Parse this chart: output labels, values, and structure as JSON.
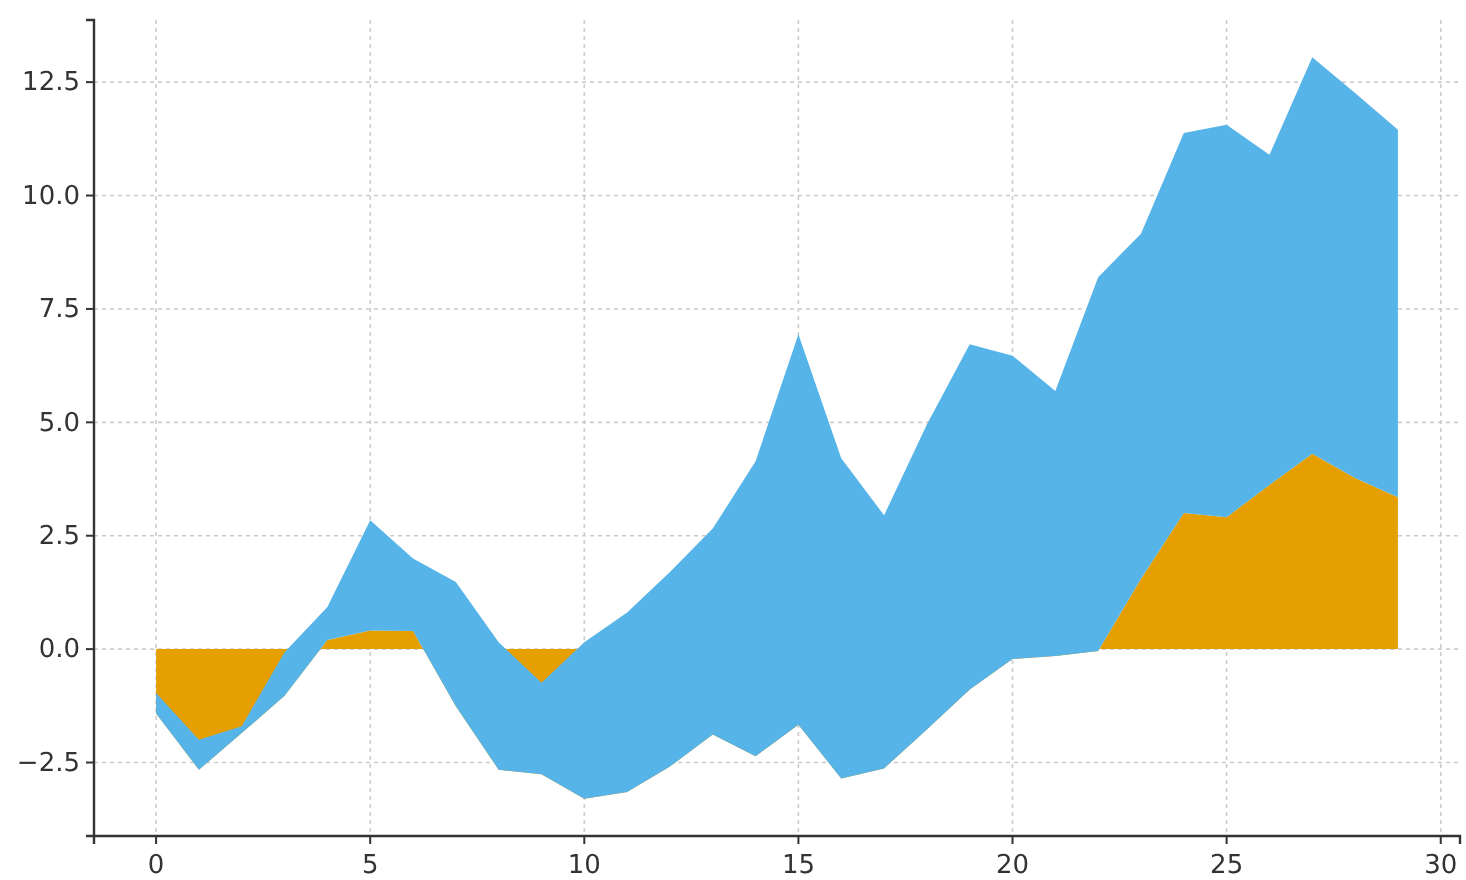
{
  "chart_data": {
    "type": "area",
    "stacked": true,
    "x": [
      0,
      1,
      2,
      3,
      4,
      5,
      6,
      7,
      8,
      9,
      10,
      11,
      12,
      13,
      14,
      15,
      16,
      17,
      18,
      19,
      20,
      21,
      22,
      23,
      24,
      25,
      26,
      27,
      28,
      29
    ],
    "series": [
      {
        "color": "#e69f00",
        "values": [
          -1.42,
          -2.66,
          -1.85,
          -1.03,
          0.2,
          0.41,
          0.4,
          -1.26,
          -2.66,
          -2.76,
          -3.3,
          -3.15,
          -2.59,
          -1.88,
          -2.36,
          -1.67,
          -2.85,
          -2.63,
          -1.77,
          -0.89,
          -0.22,
          -0.15,
          -0.04,
          1.55,
          3.0,
          2.91,
          3.62,
          4.31,
          3.77,
          3.35
        ]
      },
      {
        "color": "#56b4e9",
        "values": [
          0.45,
          0.66,
          0.15,
          0.96,
          0.73,
          2.43,
          1.6,
          2.74,
          2.81,
          2.02,
          3.45,
          3.96,
          4.29,
          4.54,
          6.5,
          8.61,
          7.06,
          5.58,
          6.72,
          7.61,
          6.69,
          5.84,
          8.24,
          7.61,
          8.38,
          8.65,
          7.28,
          8.74,
          8.49,
          8.1
        ]
      }
    ],
    "xlim": [
      -1.45,
      30.45
    ],
    "ylim": [
      -4.12,
      13.87
    ],
    "xticks": [
      0,
      5,
      10,
      15,
      20,
      25,
      30
    ],
    "yticks": [
      {
        "value": -2.5,
        "label": "−2.5"
      },
      {
        "value": 0,
        "label": "0.0"
      },
      {
        "value": 2.5,
        "label": "2.5"
      },
      {
        "value": 5,
        "label": "5.0"
      },
      {
        "value": 7.5,
        "label": "7.5"
      },
      {
        "value": 10,
        "label": "10.0"
      },
      {
        "value": 12.5,
        "label": "12.5"
      }
    ],
    "grid": true
  }
}
